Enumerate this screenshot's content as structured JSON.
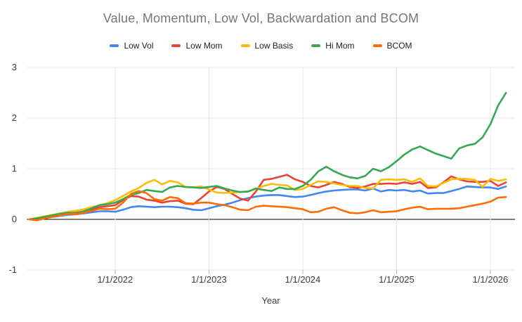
{
  "chart_data": {
    "type": "line",
    "title": "Value, Momentum, Low Vol, Backwardation and BCOM",
    "xlabel": "Year",
    "ylabel": "",
    "ylim": [
      -1,
      3
    ],
    "y_ticks": [
      3,
      2,
      1,
      0,
      -1
    ],
    "x_tick_labels": [
      "1/1/2022",
      "1/1/2023",
      "1/1/2024",
      "1/1/2025",
      "1/1/2026"
    ],
    "x_tick_indices": [
      11,
      23,
      35,
      47,
      59
    ],
    "n_points": 62,
    "x_start_label": "2021",
    "grid": true,
    "legend_position": "top",
    "zero_axis_color": "#000000",
    "gridline_color": "#e6e6e6",
    "axis_text_color": "#3c3c3c",
    "title_color": "#757575",
    "series": [
      {
        "name": "Low Vol",
        "color": "#4285F4",
        "values": [
          0.0,
          0.01,
          0.03,
          0.05,
          0.07,
          0.09,
          0.1,
          0.12,
          0.14,
          0.16,
          0.16,
          0.15,
          0.19,
          0.24,
          0.26,
          0.25,
          0.24,
          0.25,
          0.25,
          0.24,
          0.22,
          0.19,
          0.18,
          0.22,
          0.26,
          0.29,
          0.33,
          0.38,
          0.42,
          0.45,
          0.47,
          0.48,
          0.48,
          0.46,
          0.44,
          0.45,
          0.48,
          0.52,
          0.55,
          0.57,
          0.58,
          0.59,
          0.59,
          0.57,
          0.61,
          0.55,
          0.58,
          0.57,
          0.58,
          0.55,
          0.57,
          0.51,
          0.52,
          0.52,
          0.56,
          0.6,
          0.65,
          0.64,
          0.63,
          0.63,
          0.6,
          0.65
        ]
      },
      {
        "name": "Low Mom",
        "color": "#EA4335",
        "values": [
          0.0,
          0.02,
          0.04,
          0.07,
          0.1,
          0.12,
          0.13,
          0.16,
          0.2,
          0.24,
          0.26,
          0.28,
          0.38,
          0.46,
          0.45,
          0.39,
          0.37,
          0.33,
          0.36,
          0.37,
          0.31,
          0.3,
          0.42,
          0.55,
          0.64,
          0.6,
          0.5,
          0.41,
          0.37,
          0.55,
          0.78,
          0.8,
          0.84,
          0.88,
          0.79,
          0.74,
          0.66,
          0.63,
          0.68,
          0.74,
          0.7,
          0.64,
          0.62,
          0.65,
          0.7,
          0.7,
          0.71,
          0.7,
          0.73,
          0.7,
          0.74,
          0.62,
          0.63,
          0.73,
          0.85,
          0.79,
          0.75,
          0.74,
          0.74,
          0.76,
          0.66,
          0.73
        ]
      },
      {
        "name": "Low Basis",
        "color": "#FBBC04",
        "values": [
          0.0,
          0.03,
          0.06,
          0.09,
          0.12,
          0.15,
          0.17,
          0.2,
          0.24,
          0.28,
          0.32,
          0.38,
          0.46,
          0.55,
          0.62,
          0.72,
          0.78,
          0.69,
          0.76,
          0.73,
          0.64,
          0.63,
          0.65,
          0.59,
          0.53,
          0.52,
          0.53,
          0.54,
          0.55,
          0.6,
          0.66,
          0.7,
          0.68,
          0.67,
          0.58,
          0.6,
          0.68,
          0.75,
          0.74,
          0.71,
          0.68,
          0.66,
          0.66,
          0.62,
          0.61,
          0.78,
          0.79,
          0.78,
          0.79,
          0.74,
          0.81,
          0.66,
          0.65,
          0.72,
          0.79,
          0.8,
          0.8,
          0.78,
          0.64,
          0.8,
          0.76,
          0.79
        ]
      },
      {
        "name": "Hi Mom",
        "color": "#34A853",
        "values": [
          0.0,
          0.02,
          0.05,
          0.08,
          0.11,
          0.13,
          0.12,
          0.16,
          0.22,
          0.28,
          0.3,
          0.33,
          0.4,
          0.48,
          0.52,
          0.58,
          0.56,
          0.54,
          0.63,
          0.66,
          0.64,
          0.63,
          0.62,
          0.64,
          0.66,
          0.61,
          0.57,
          0.54,
          0.55,
          0.61,
          0.58,
          0.56,
          0.63,
          0.6,
          0.6,
          0.66,
          0.78,
          0.95,
          1.04,
          0.95,
          0.88,
          0.83,
          0.81,
          0.86,
          1.0,
          0.95,
          1.03,
          1.15,
          1.28,
          1.38,
          1.44,
          1.37,
          1.3,
          1.25,
          1.2,
          1.4,
          1.46,
          1.49,
          1.62,
          1.88,
          2.25,
          2.5
        ]
      },
      {
        "name": "BCOM",
        "color": "#FF6D01",
        "values": [
          0.0,
          -0.02,
          0.02,
          0.05,
          0.08,
          0.11,
          0.1,
          0.13,
          0.17,
          0.21,
          0.2,
          0.21,
          0.33,
          0.5,
          0.56,
          0.52,
          0.4,
          0.37,
          0.44,
          0.42,
          0.32,
          0.31,
          0.33,
          0.33,
          0.3,
          0.28,
          0.24,
          0.19,
          0.18,
          0.25,
          0.27,
          0.26,
          0.25,
          0.24,
          0.22,
          0.2,
          0.14,
          0.15,
          0.21,
          0.24,
          0.18,
          0.13,
          0.12,
          0.14,
          0.18,
          0.14,
          0.15,
          0.16,
          0.2,
          0.23,
          0.25,
          0.2,
          0.21,
          0.21,
          0.21,
          0.22,
          0.25,
          0.28,
          0.31,
          0.35,
          0.43,
          0.44
        ]
      }
    ]
  }
}
